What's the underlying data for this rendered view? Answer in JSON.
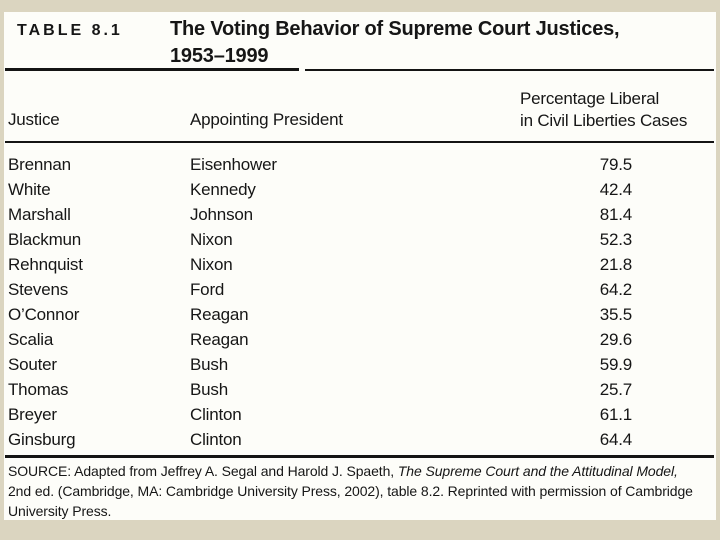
{
  "frame": {
    "border_color": "#dbd5c0",
    "panel_color": "#fdfdf9",
    "text_color": "#161616",
    "rule_color": "#141414"
  },
  "header": {
    "table_label": "TABLE 8.1",
    "title_line1": "The Voting Behavior of Supreme Court Justices,",
    "title_line2": "1953–1999"
  },
  "table": {
    "col_justice": "Justice",
    "col_president": "Appointing President",
    "col_pct_line1": "Percentage Liberal",
    "col_pct_line2": "in Civil Liberties Cases",
    "rows": [
      {
        "justice": "Brennan",
        "president": "Eisenhower",
        "pct": "79.5"
      },
      {
        "justice": "White",
        "president": "Kennedy",
        "pct": "42.4"
      },
      {
        "justice": "Marshall",
        "president": "Johnson",
        "pct": "81.4"
      },
      {
        "justice": "Blackmun",
        "president": "Nixon",
        "pct": "52.3"
      },
      {
        "justice": "Rehnquist",
        "president": "Nixon",
        "pct": "21.8"
      },
      {
        "justice": "Stevens",
        "president": "Ford",
        "pct": "64.2"
      },
      {
        "justice": "O’Connor",
        "president": "Reagan",
        "pct": "35.5"
      },
      {
        "justice": "Scalia",
        "president": "Reagan",
        "pct": "29.6"
      },
      {
        "justice": "Souter",
        "president": "Bush",
        "pct": "59.9"
      },
      {
        "justice": "Thomas",
        "president": "Bush",
        "pct": "25.7"
      },
      {
        "justice": "Breyer",
        "president": "Clinton",
        "pct": "61.1"
      },
      {
        "justice": "Ginsburg",
        "president": "Clinton",
        "pct": "64.4"
      }
    ]
  },
  "source": {
    "line1_normal": "SOURCE: Adapted from Jeffrey A. Segal and Harold J. Spaeth, ",
    "line1_italic": "The Supreme Court and the Attitudinal Model,",
    "line2": "2nd ed. (Cambridge, MA: Cambridge University Press, 2002), table 8.2. Reprinted with permission of Cambridge",
    "line3": "University Press."
  }
}
